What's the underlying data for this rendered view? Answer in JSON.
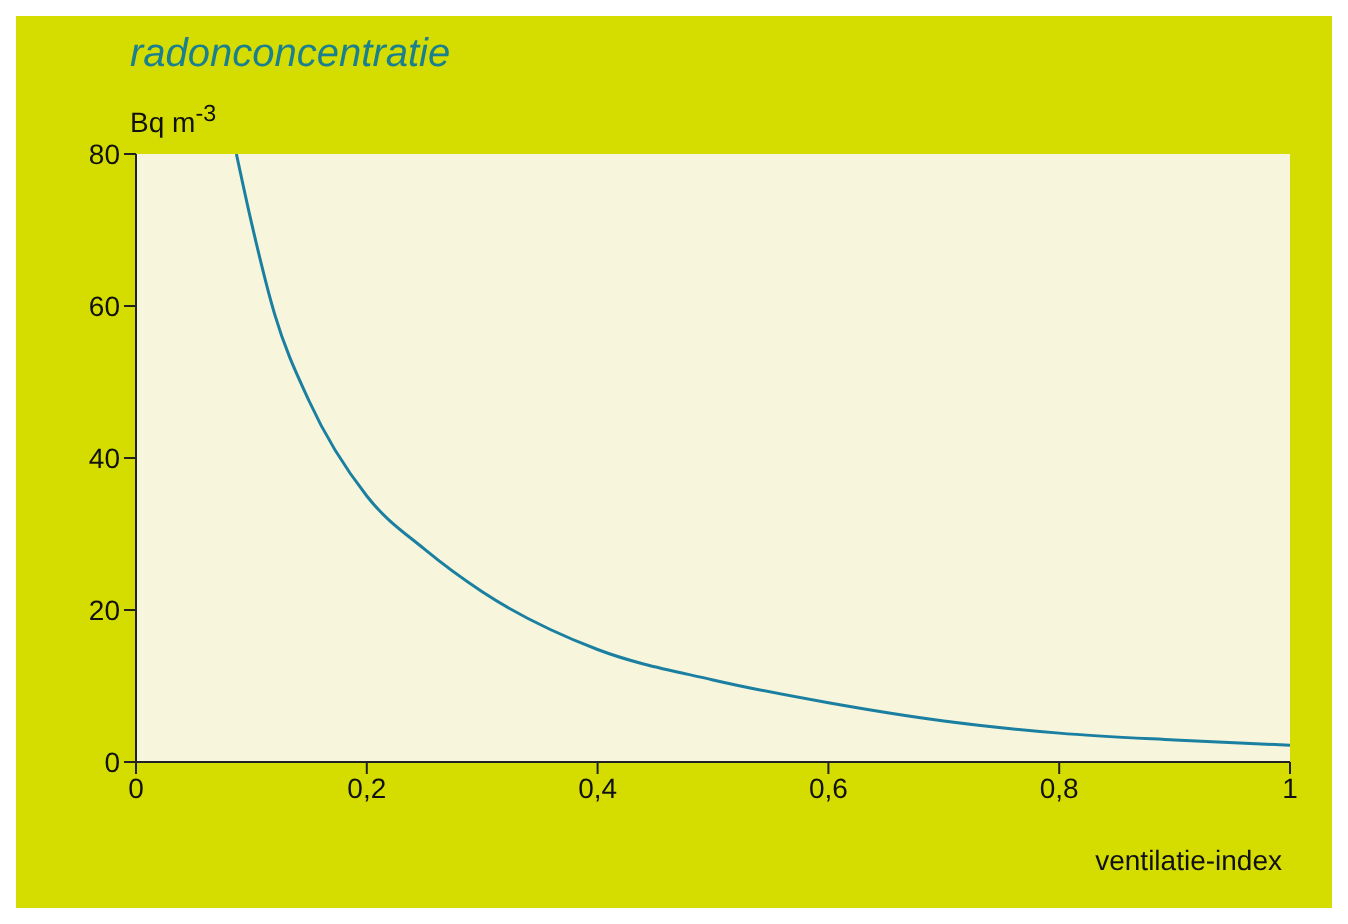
{
  "chart_data": {
    "type": "line",
    "title": "radonconcentratie",
    "ylabel": "Bq m$^{-3}$",
    "xlabel": "ventilatie-index",
    "x": [
      0.087,
      0.1,
      0.12,
      0.15,
      0.2,
      0.25,
      0.3,
      0.4,
      0.5,
      0.6,
      0.7,
      0.8,
      0.9,
      1.0
    ],
    "series": [
      {
        "color": "#1a7fa0",
        "values": [
          80,
          71,
          59,
          47.5,
          35,
          28,
          22.4,
          14.8,
          10.8,
          7.8,
          5.4,
          3.8,
          2.9,
          2.2
        ]
      }
    ],
    "xlim": [
      0,
      1
    ],
    "ylim": [
      0,
      80
    ],
    "xticks": [
      0,
      {
        "value": 0.2,
        "label": "0,2"
      },
      {
        "value": 0.4,
        "label": "0,4"
      },
      {
        "value": 0.6,
        "label": "0,6"
      },
      {
        "value": 0.8,
        "label": "0,8"
      },
      1
    ],
    "yticks": [
      0,
      20,
      40,
      60,
      80
    ],
    "grid": false,
    "marker": "none",
    "line_style": "solid"
  }
}
